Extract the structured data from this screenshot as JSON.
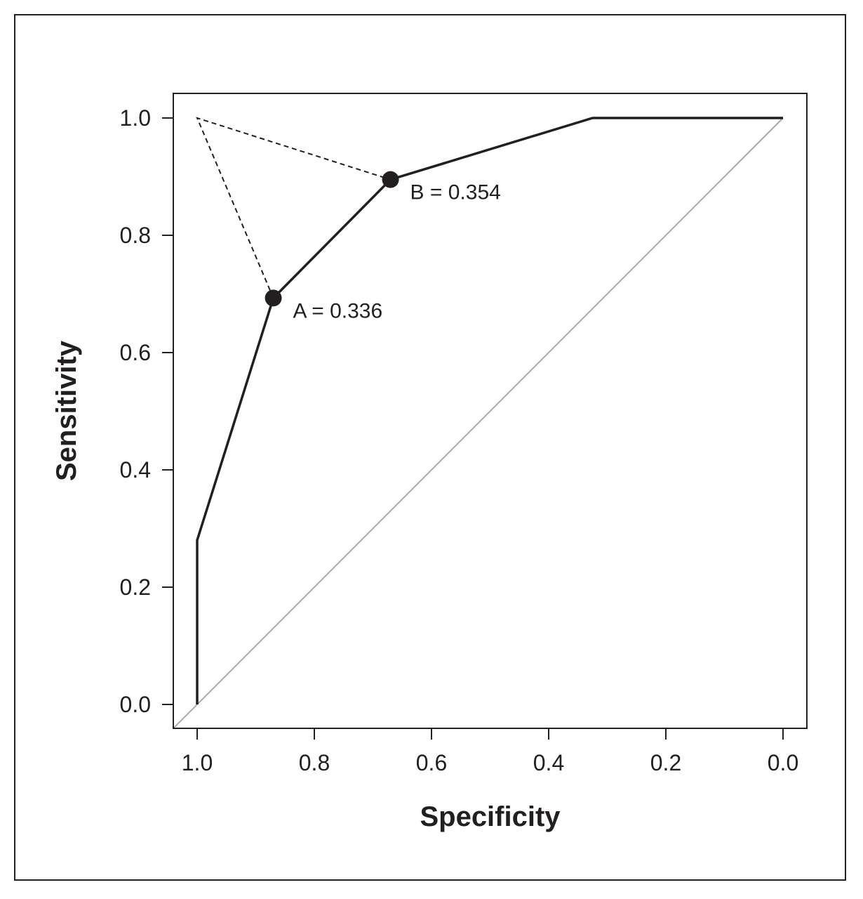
{
  "chart_data": {
    "type": "line",
    "xlabel": "Specificity",
    "ylabel": "Sensitivity",
    "xlim": [
      1.0,
      0.0
    ],
    "ylim": [
      0.0,
      1.0
    ],
    "x_reversed": true,
    "x_ticks": [
      "1.0",
      "0.8",
      "0.6",
      "0.4",
      "0.2",
      "0.0"
    ],
    "y_ticks": [
      "0.0",
      "0.2",
      "0.4",
      "0.6",
      "0.8",
      "1.0"
    ],
    "grid": false,
    "colors": {
      "curve": "#231f20",
      "reference": "#a7a9ac"
    },
    "series": [
      {
        "type": "roc-curve",
        "x": [
          1.0,
          1.0,
          0.87,
          0.67,
          0.325,
          0.0
        ],
        "y": [
          0.0,
          0.28,
          0.693,
          0.895,
          1.0,
          1.0
        ]
      },
      {
        "type": "reference-diagonal",
        "x": [
          1.04,
          0.0
        ],
        "y": [
          -0.04,
          1.0
        ]
      },
      {
        "type": "dashed-distance",
        "x": [
          0.87,
          1.0,
          0.67
        ],
        "y": [
          0.693,
          1.0,
          0.895
        ]
      }
    ],
    "points": [
      {
        "label": "A = 0.336",
        "x": 0.87,
        "y": 0.693
      },
      {
        "label": "B = 0.354",
        "x": 0.67,
        "y": 0.895
      }
    ]
  }
}
